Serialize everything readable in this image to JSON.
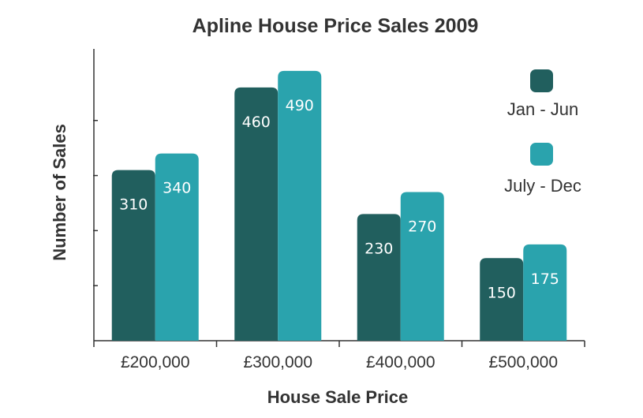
{
  "chart_data": {
    "type": "bar",
    "title": "Apline House Price Sales 2009",
    "xlabel": "House Sale Price",
    "ylabel": "Number of Sales",
    "categories": [
      "£200,000",
      "£300,000",
      "£400,000",
      "£500,000"
    ],
    "series": [
      {
        "name": "Jan - Jun",
        "values": [
          310,
          460,
          230,
          150
        ],
        "color": "#215f5e"
      },
      {
        "name": "July - Dec",
        "values": [
          340,
          490,
          270,
          175
        ],
        "color": "#2aa3ad"
      }
    ],
    "ylim": [
      0,
      530
    ],
    "y_ticks": [
      100,
      200,
      300,
      400
    ],
    "grid": false,
    "legend_position": "right"
  }
}
